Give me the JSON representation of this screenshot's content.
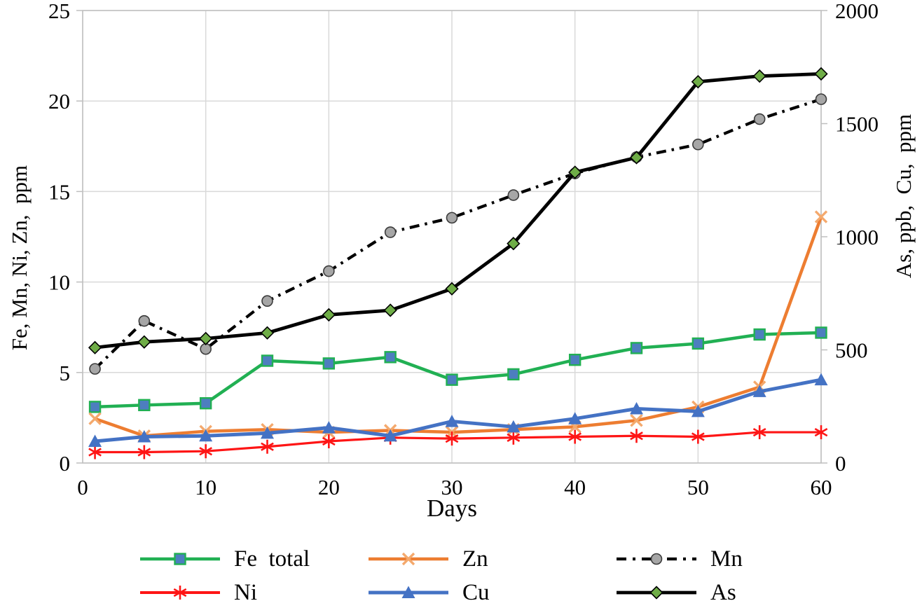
{
  "chart_data": {
    "type": "line",
    "title": "",
    "xlabel": "Days",
    "ylabel_left": "Fe, Mn, Ni, Zn,  ppm",
    "ylabel_right": "As, ppb,  Cu,  ppm",
    "x": [
      1,
      5,
      10,
      15,
      20,
      25,
      30,
      35,
      40,
      45,
      50,
      55,
      60
    ],
    "xlim": [
      0,
      60
    ],
    "x_ticks": [
      0,
      10,
      20,
      30,
      40,
      50,
      60
    ],
    "ylim_left": [
      0,
      25
    ],
    "y_ticks_left": [
      0,
      5,
      10,
      15,
      20,
      25
    ],
    "ylim_right": [
      0,
      2000
    ],
    "y_ticks_right": [
      0,
      500,
      1000,
      1500,
      2000
    ],
    "grid": true,
    "grid_color": "#d9d9d9",
    "axis_color": "#bfbfbf",
    "legend_position": "bottom",
    "series": [
      {
        "name": "Fe  total",
        "axis": "left",
        "line_color": "#21b053",
        "line_width": 4.5,
        "dash": null,
        "marker": "square",
        "marker_fill": "#4d7ebf",
        "marker_outline": "#21b053",
        "values": [
          3.1,
          3.2,
          3.3,
          5.65,
          5.5,
          5.85,
          4.6,
          4.9,
          5.7,
          6.35,
          6.6,
          7.1,
          7.2
        ]
      },
      {
        "name": "Zn",
        "axis": "left",
        "line_color": "#ed7d31",
        "line_width": 4.5,
        "dash": null,
        "marker": "x",
        "marker_fill": "#f4a96d",
        "marker_outline": "#f4a96d",
        "values": [
          2.45,
          1.5,
          1.75,
          1.85,
          1.7,
          1.8,
          1.7,
          1.85,
          2.0,
          2.35,
          3.1,
          4.2,
          13.6
        ]
      },
      {
        "name": "Mn",
        "axis": "left",
        "line_color": "#000000",
        "line_width": 4.2,
        "dash": "14 8 3.5 8",
        "marker": "circle",
        "marker_fill": "#a6a6a6",
        "marker_outline": "#3b3b3b",
        "values": [
          5.2,
          7.85,
          6.3,
          8.95,
          10.6,
          12.75,
          13.55,
          14.8,
          16.0,
          16.9,
          17.6,
          19.0,
          20.1
        ]
      },
      {
        "name": "Ni",
        "axis": "left",
        "line_color": "#fe1515",
        "line_width": 3.2,
        "dash": null,
        "marker": "asterisk",
        "marker_fill": "#fe1515",
        "marker_outline": "#fe1515",
        "values": [
          0.6,
          0.6,
          0.65,
          0.9,
          1.2,
          1.4,
          1.35,
          1.4,
          1.45,
          1.5,
          1.45,
          1.7,
          1.7
        ]
      },
      {
        "name": "Cu",
        "axis": "left",
        "line_color": "#4472c4",
        "line_width": 5,
        "dash": null,
        "marker": "triangle",
        "marker_fill": "#4472c4",
        "marker_outline": "#4472c4",
        "values": [
          1.2,
          1.45,
          1.5,
          1.65,
          1.95,
          1.5,
          2.3,
          2.0,
          2.45,
          3.0,
          2.85,
          3.95,
          4.6
        ]
      },
      {
        "name": "As",
        "axis": "right",
        "line_color": "#000000",
        "line_width": 4.8,
        "dash": null,
        "marker": "diamond",
        "marker_fill": "#6fad47",
        "marker_outline": "#000000",
        "values": [
          510,
          535,
          550,
          575,
          655,
          675,
          770,
          970,
          1285,
          1350,
          1685,
          1710,
          1720
        ]
      }
    ],
    "legend": {
      "rows": 2,
      "columns": 3,
      "entries": [
        "Fe  total",
        "Zn",
        "Mn",
        "Ni",
        "Cu",
        "As"
      ]
    }
  }
}
